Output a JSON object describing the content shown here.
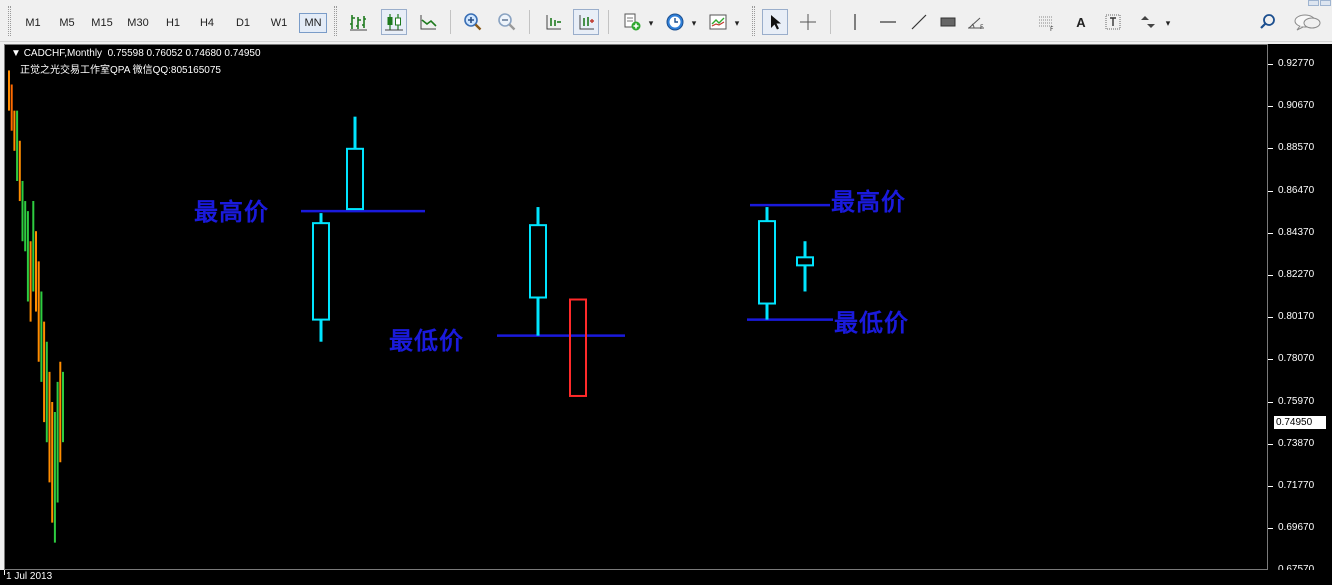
{
  "toolbar": {
    "timeframes": [
      "M1",
      "M5",
      "M15",
      "M30",
      "H1",
      "H4",
      "D1",
      "W1",
      "MN"
    ],
    "active_timeframe": "MN",
    "tools": [
      "bar-chart-icon",
      "candlestick-icon",
      "line-chart-icon",
      "zoom-in-icon",
      "zoom-out-icon",
      "chart-shift-icon",
      "auto-scroll-icon",
      "indicators-icon",
      "periods-icon",
      "templates-icon",
      "cursor-icon",
      "crosshair-icon",
      "vertical-line-icon",
      "horizontal-line-icon",
      "trendline-icon",
      "rectangle-icon",
      "fibonacci-icon",
      "channel-icon",
      "text-icon",
      "text-label-icon",
      "arrows-icon",
      "search-icon",
      "chat-icon"
    ],
    "text_tool_label": "A"
  },
  "chart": {
    "header_symbol": "CADCHF,Monthly",
    "header_ohlc": "0.75598 0.76052 0.74680 0.74950",
    "watermark": "正觉之光交易工作室QPA 微信QQ:805165075",
    "annotation_high_left": "最高价",
    "annotation_low_middle": "最低价",
    "annotation_high_right": "最高价",
    "annotation_low_right": "最低价",
    "bullish_color": "#00e5ff",
    "bearish_color": "#ff2a2a",
    "line_color": "#1a1adc",
    "date_label": "1 Jul 2013"
  },
  "axis": {
    "prices": [
      "0.92770",
      "0.90670",
      "0.88570",
      "0.86470",
      "0.84370",
      "0.82270",
      "0.80170",
      "0.78070",
      "0.75970",
      "0.73870",
      "0.71770",
      "0.69670",
      "0.67570"
    ],
    "current_price": "0.74950"
  },
  "chart_data": {
    "type": "candlestick",
    "title": "CADCHF,Monthly",
    "ylim": [
      0.6757,
      0.9277
    ],
    "examples": [
      {
        "candles": [
          {
            "open": 0.801,
            "high": 0.854,
            "low": 0.79,
            "close": 0.849
          },
          {
            "open": 0.856,
            "high": 0.902,
            "low": 0.856,
            "close": 0.886
          }
        ],
        "line": 0.855
      },
      {
        "candles": [
          {
            "open": 0.812,
            "high": 0.857,
            "low": 0.793,
            "close": 0.848
          },
          {
            "open": 0.811,
            "high": 0.811,
            "low": 0.763,
            "close": 0.763
          }
        ],
        "line": 0.793
      },
      {
        "candles": [
          {
            "open": 0.809,
            "high": 0.857,
            "low": 0.801,
            "close": 0.85
          },
          {
            "open": 0.828,
            "high": 0.84,
            "low": 0.815,
            "close": 0.832
          }
        ],
        "high_line": 0.858,
        "low_line": 0.801
      }
    ]
  }
}
